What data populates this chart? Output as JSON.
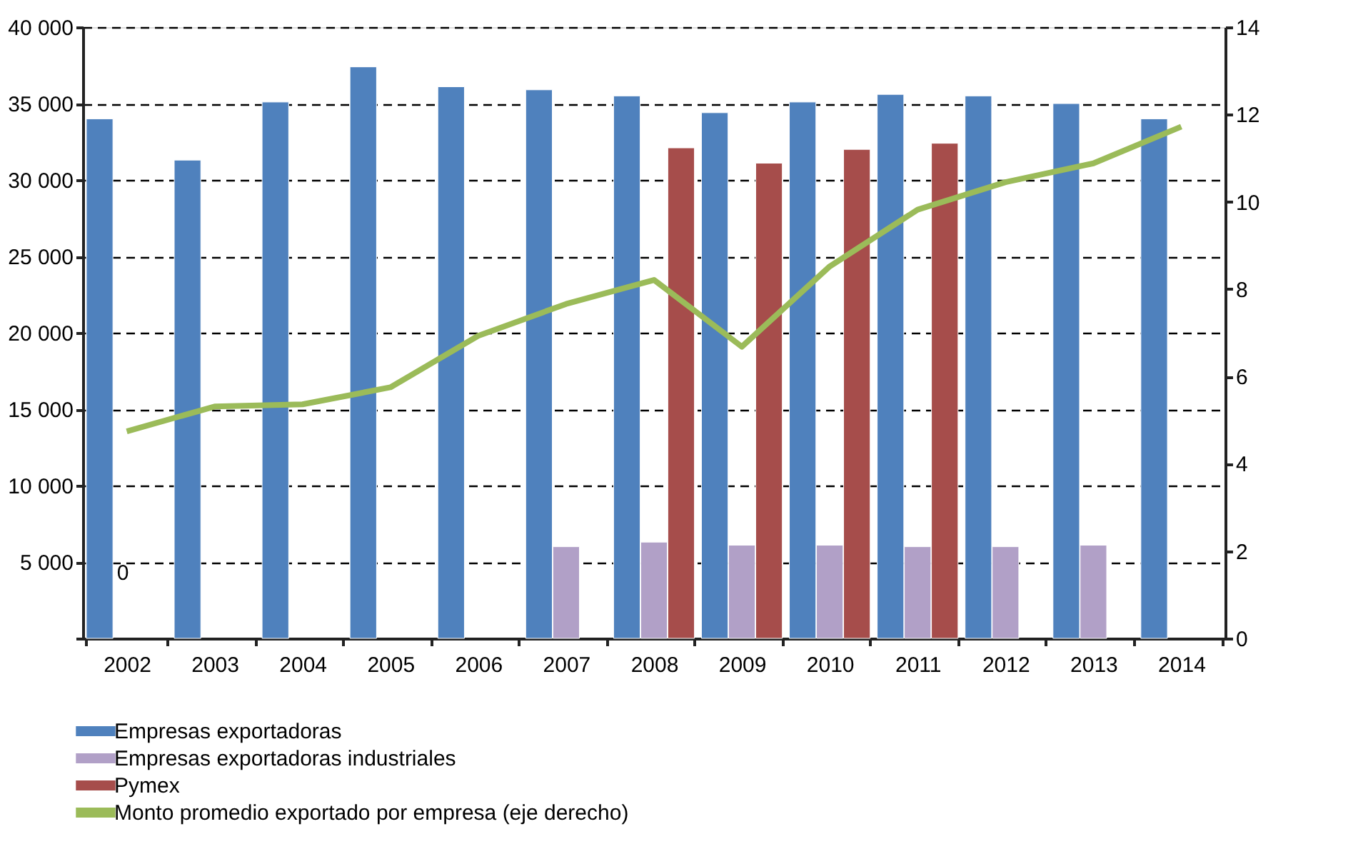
{
  "chart_data": {
    "type": "bar",
    "categories": [
      "2002",
      "2003",
      "2004",
      "2005",
      "2006",
      "2007",
      "2008",
      "2009",
      "2010",
      "2011",
      "2012",
      "2013",
      "2014"
    ],
    "series": [
      {
        "name": "Empresas exportadoras",
        "color": "#4f81bd",
        "values": [
          34000,
          31300,
          35100,
          37400,
          36100,
          35900,
          35500,
          34400,
          35100,
          35600,
          35500,
          35000,
          34000
        ]
      },
      {
        "name": "Empresas exportadoras industriales",
        "color": "#b1a0c7",
        "values": [
          null,
          null,
          null,
          null,
          null,
          6000,
          6300,
          6100,
          6100,
          6000,
          6000,
          6100,
          null
        ]
      },
      {
        "name": "Pymex",
        "color": "#a64d4b",
        "values": [
          null,
          null,
          null,
          null,
          null,
          null,
          32100,
          31100,
          32000,
          32400,
          null,
          null,
          null
        ]
      },
      {
        "name": "Monto promedio exportado por empresa (eje derecho)",
        "type": "line",
        "axis": "y2",
        "color": "#9bbb59",
        "values": [
          4.74,
          5.31,
          5.36,
          5.75,
          6.93,
          7.66,
          8.21,
          6.68,
          8.52,
          9.82,
          10.45,
          10.88,
          11.72
        ]
      }
    ],
    "ylim": [
      0,
      40000
    ],
    "yticks": [
      {
        "value": 0,
        "label": null
      },
      {
        "value": 5000,
        "label": "5 000"
      },
      {
        "value": 10000,
        "label": "10 000"
      },
      {
        "value": 15000,
        "label": "15 000"
      },
      {
        "value": 20000,
        "label": "20 000"
      },
      {
        "value": 25000,
        "label": "25 000"
      },
      {
        "value": 30000,
        "label": "30 000"
      },
      {
        "value": 35000,
        "label": "35 000"
      },
      {
        "value": 40000,
        "label": "40 000"
      }
    ],
    "y2lim": [
      0,
      14
    ],
    "y2ticks": [
      0,
      2,
      4,
      6,
      8,
      10,
      12,
      14
    ],
    "grid": "y",
    "legend": "bottom",
    "annotations": [
      "0"
    ]
  }
}
